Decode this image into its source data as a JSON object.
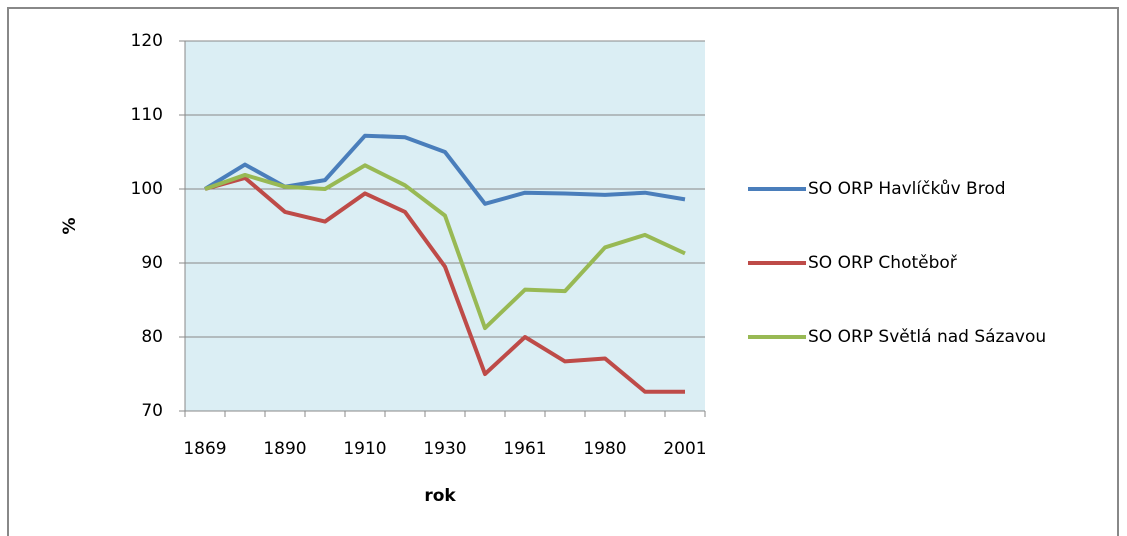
{
  "chart_data": {
    "type": "line",
    "x_label": "rok",
    "y_label": "%",
    "categories": [
      "1869",
      null,
      "1890",
      null,
      "1910",
      null,
      "1930",
      null,
      "1961",
      null,
      "1980",
      null,
      "2001"
    ],
    "series": [
      {
        "name": "SO ORP Havlíčkův Brod",
        "color": "#4a7ebb",
        "values": [
          100,
          103.3,
          100.3,
          101.2,
          107.2,
          107.0,
          105.0,
          98.0,
          99.5,
          99.4,
          99.2,
          99.5,
          98.6
        ]
      },
      {
        "name": "SO ORP Chotěboř",
        "color": "#be4b48",
        "values": [
          100,
          101.5,
          96.9,
          95.6,
          99.4,
          96.9,
          89.5,
          75.0,
          80.0,
          76.7,
          77.1,
          72.6,
          72.6
        ]
      },
      {
        "name": "SO ORP Světlá nad Sázavou",
        "color": "#98b954",
        "values": [
          100,
          101.9,
          100.3,
          100.0,
          103.2,
          100.5,
          96.4,
          81.2,
          86.4,
          86.2,
          92.1,
          93.8,
          91.3
        ]
      }
    ],
    "ylim": [
      70,
      120
    ],
    "yticks": [
      70,
      80,
      90,
      100,
      110,
      120
    ],
    "grid": true,
    "legend": "right"
  }
}
